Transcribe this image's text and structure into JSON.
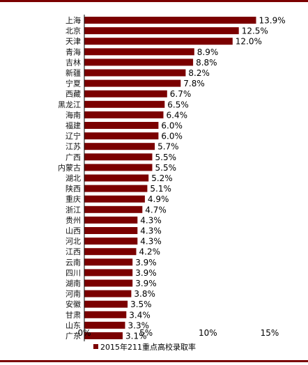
{
  "chart_data": {
    "type": "bar",
    "orientation": "horizontal",
    "categories": [
      "上海",
      "北京",
      "天津",
      "青海",
      "吉林",
      "新疆",
      "宁夏",
      "西藏",
      "黑龙江",
      "海南",
      "福建",
      "辽宁",
      "江苏",
      "广西",
      "内蒙古",
      "湖北",
      "陕西",
      "重庆",
      "浙江",
      "贵州",
      "山西",
      "河北",
      "江西",
      "云南",
      "四川",
      "湖南",
      "河南",
      "安徽",
      "甘肃",
      "山东",
      "广东"
    ],
    "series": [
      {
        "name": "2015年211重点高校录取率",
        "values": [
          13.9,
          12.5,
          12.0,
          8.9,
          8.8,
          8.2,
          7.8,
          6.7,
          6.5,
          6.4,
          6.0,
          6.0,
          5.7,
          5.5,
          5.5,
          5.2,
          5.1,
          4.9,
          4.7,
          4.3,
          4.3,
          4.3,
          4.2,
          3.9,
          3.9,
          3.9,
          3.8,
          3.5,
          3.4,
          3.3,
          3.1
        ],
        "labels": [
          "13.9%",
          "12.5%",
          "12.0%",
          "8.9%",
          "8.8%",
          "8.2%",
          "7.8%",
          "6.7%",
          "6.5%",
          "6.4%",
          "6.0%",
          "6.0%",
          "5.7%",
          "5.5%",
          "5.5%",
          "5.2%",
          "5.1%",
          "4.9%",
          "4.7%",
          "4.3%",
          "4.3%",
          "4.3%",
          "4.2%",
          "3.9%",
          "3.9%",
          "3.9%",
          "3.8%",
          "3.5%",
          "3.4%",
          "3.3%",
          "3.1%"
        ],
        "color": "#7b0000"
      }
    ],
    "xlim": [
      0,
      15
    ],
    "xticks": [
      0,
      5,
      10,
      15
    ],
    "xtick_labels": [
      "0%",
      "5%",
      "10%",
      "15%"
    ],
    "legend_position": "bottom",
    "grid": false,
    "title": "",
    "xlabel": "",
    "ylabel": ""
  }
}
